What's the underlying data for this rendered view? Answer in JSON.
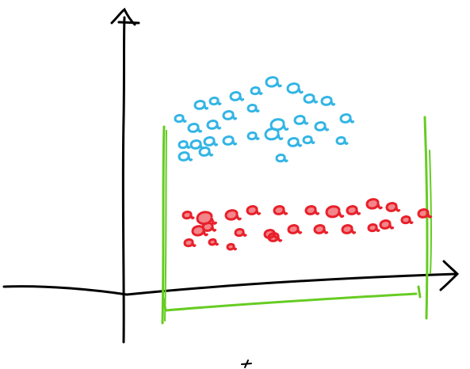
{
  "diagram": {
    "background": "#ffffff",
    "ink_color": "#000000",
    "boundary_color": "#66cc22",
    "upper_cluster_color": "#33b5e5",
    "lower_cluster_color": "#e8202a"
  }
}
